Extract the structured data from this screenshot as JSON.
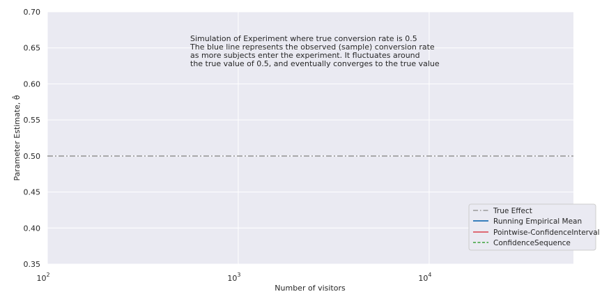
{
  "chart_data": {
    "type": "line",
    "xlabel": "Number of visitors",
    "ylabel": "Parameter Estimate, θ̂",
    "xscale": "log",
    "xlim": [
      100,
      57000
    ],
    "ylim": [
      0.35,
      0.7
    ],
    "x_ticks": [
      {
        "value": 100,
        "base": "10",
        "exp": "2"
      },
      {
        "value": 1000,
        "base": "10",
        "exp": "3"
      },
      {
        "value": 10000,
        "base": "10",
        "exp": "4"
      }
    ],
    "y_ticks": [
      "0.35",
      "0.40",
      "0.45",
      "0.50",
      "0.55",
      "0.60",
      "0.65",
      "0.70"
    ],
    "grid": true,
    "annotation": [
      "Simulation of Experiment where true conversion rate is 0.5",
      "The blue line represents the observed (sample) conversion rate",
      "as more subjects enter the experiment. It fluctuates around",
      "the true value of 0.5, and eventually converges to the true value"
    ],
    "series": [
      {
        "name": "True Effect",
        "style": "dashdot",
        "color": "#999999",
        "values": [
          {
            "x": 100,
            "y": 0.5
          },
          {
            "x": 57000,
            "y": 0.5
          }
        ]
      },
      {
        "name": "Running Empirical Mean",
        "style": "solid",
        "color": "#1f6fb5",
        "values": []
      },
      {
        "name": "Pointwise-ConfidenceInterval",
        "style": "solid",
        "color": "#d9404b",
        "values": []
      },
      {
        "name": "ConfidenceSequence",
        "style": "dashed",
        "color": "#3aa13a",
        "values": []
      }
    ],
    "legend_position": "lower-right"
  },
  "colors": {
    "plot_background": "#eaeaf2",
    "grid": "#ffffff"
  }
}
